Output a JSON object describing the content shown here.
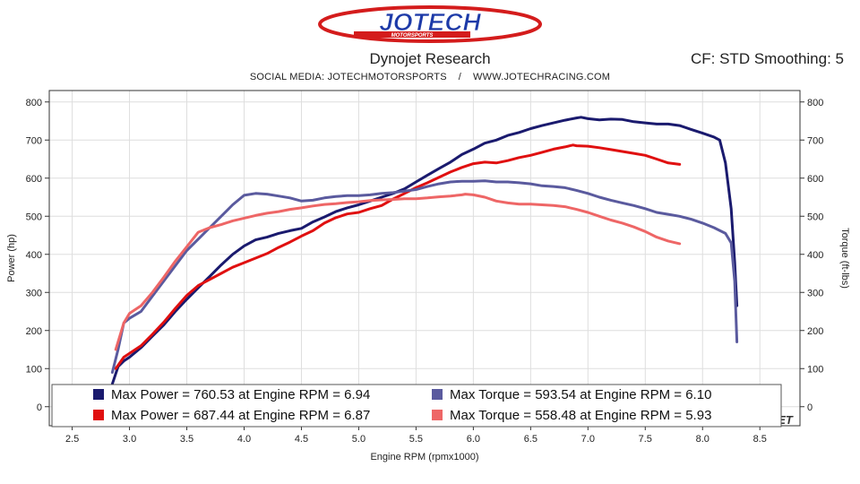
{
  "header": {
    "logo_text": "JOTECH",
    "logo_subtext": "MOTORSPORTS",
    "title": "Dynojet Research",
    "subtitle": "SOCIAL MEDIA: JOTECHMOTORSPORTS    /    WWW.JOTECHRACING.COM",
    "correction": "CF: STD Smoothing: 5"
  },
  "colors": {
    "power_run1": "#1a1a6e",
    "power_run2": "#e01010",
    "torque_run1": "#5a5a9e",
    "torque_run2": "#ee6666",
    "grid": "#dedede",
    "plot_border": "#333333"
  },
  "chart_data": {
    "type": "line",
    "xlabel": "Engine RPM (rpmx1000)",
    "ylabel": "Power (hp)",
    "y2label": "Torque (ft-lbs)",
    "xlim": [
      2.3,
      8.85
    ],
    "ylim": [
      -50,
      830
    ],
    "y2lim": [
      -50,
      830
    ],
    "xticks": [
      2.5,
      3.0,
      3.5,
      4.0,
      4.5,
      5.0,
      5.5,
      6.0,
      6.5,
      7.0,
      7.5,
      8.0,
      8.5
    ],
    "xtick_labels": [
      "2.5",
      "3.0",
      "3.5",
      "4.0",
      "4.5",
      "5.0",
      "5.5",
      "6.0",
      "6.5",
      "7.0",
      "7.5",
      "8.0",
      "8.5"
    ],
    "yticks": [
      0,
      100,
      200,
      300,
      400,
      500,
      600,
      700,
      800
    ],
    "ytick_labels": [
      "0",
      "100",
      "200",
      "300",
      "400",
      "500",
      "600",
      "700",
      "800"
    ],
    "grid": true,
    "legend_position": "bottom",
    "series": [
      {
        "axis": "left",
        "color": "#1a1a6e",
        "x": [
          2.85,
          2.9,
          2.95,
          3.0,
          3.1,
          3.2,
          3.3,
          3.4,
          3.5,
          3.6,
          3.7,
          3.8,
          3.9,
          4.0,
          4.1,
          4.2,
          4.3,
          4.4,
          4.5,
          4.6,
          4.7,
          4.8,
          4.9,
          5.0,
          5.1,
          5.2,
          5.3,
          5.4,
          5.5,
          5.6,
          5.7,
          5.8,
          5.9,
          6.0,
          6.1,
          6.2,
          6.3,
          6.4,
          6.5,
          6.6,
          6.7,
          6.8,
          6.9,
          6.94,
          7.0,
          7.1,
          7.2,
          7.3,
          7.4,
          7.5,
          7.6,
          7.7,
          7.8,
          7.9,
          8.0,
          8.1,
          8.15,
          8.2,
          8.25,
          8.28,
          8.3
        ],
        "values": [
          60,
          105,
          120,
          130,
          155,
          185,
          215,
          250,
          282,
          312,
          342,
          372,
          400,
          422,
          438,
          445,
          455,
          462,
          468,
          485,
          498,
          512,
          522,
          530,
          540,
          550,
          560,
          572,
          590,
          608,
          625,
          642,
          662,
          676,
          692,
          700,
          712,
          720,
          730,
          738,
          745,
          752,
          758,
          760,
          756,
          753,
          755,
          754,
          748,
          745,
          742,
          742,
          738,
          728,
          718,
          708,
          700,
          640,
          520,
          380,
          265
        ],
        "name": ""
      },
      {
        "axis": "left",
        "color": "#e01010",
        "x": [
          2.88,
          2.95,
          3.0,
          3.1,
          3.2,
          3.3,
          3.4,
          3.5,
          3.6,
          3.7,
          3.8,
          3.9,
          4.0,
          4.1,
          4.2,
          4.3,
          4.4,
          4.5,
          4.6,
          4.7,
          4.8,
          4.9,
          5.0,
          5.1,
          5.2,
          5.3,
          5.4,
          5.5,
          5.6,
          5.7,
          5.8,
          5.9,
          6.0,
          6.1,
          6.2,
          6.3,
          6.4,
          6.5,
          6.6,
          6.7,
          6.8,
          6.87,
          6.9,
          7.0,
          7.1,
          7.2,
          7.3,
          7.4,
          7.5,
          7.6,
          7.7,
          7.8
        ],
        "values": [
          100,
          130,
          140,
          160,
          190,
          222,
          258,
          292,
          318,
          334,
          350,
          366,
          378,
          390,
          402,
          418,
          432,
          448,
          462,
          482,
          496,
          506,
          510,
          520,
          528,
          545,
          560,
          575,
          588,
          602,
          616,
          628,
          638,
          642,
          640,
          646,
          654,
          660,
          668,
          676,
          682,
          687,
          685,
          684,
          680,
          675,
          670,
          665,
          660,
          650,
          640,
          636
        ],
        "name": ""
      },
      {
        "axis": "right",
        "color": "#5a5a9e",
        "x": [
          2.85,
          2.9,
          2.95,
          3.0,
          3.1,
          3.2,
          3.3,
          3.4,
          3.5,
          3.6,
          3.7,
          3.8,
          3.9,
          4.0,
          4.1,
          4.2,
          4.3,
          4.4,
          4.5,
          4.6,
          4.7,
          4.8,
          4.9,
          5.0,
          5.1,
          5.2,
          5.3,
          5.4,
          5.5,
          5.6,
          5.7,
          5.8,
          5.9,
          6.0,
          6.1,
          6.2,
          6.3,
          6.4,
          6.5,
          6.6,
          6.7,
          6.8,
          6.9,
          7.0,
          7.1,
          7.2,
          7.3,
          7.4,
          7.5,
          7.6,
          7.7,
          7.8,
          7.9,
          8.0,
          8.1,
          8.2,
          8.25,
          8.28,
          8.3
        ],
        "values": [
          90,
          150,
          220,
          232,
          250,
          290,
          330,
          370,
          410,
          440,
          470,
          500,
          530,
          555,
          560,
          558,
          553,
          548,
          540,
          542,
          548,
          552,
          554,
          554,
          556,
          560,
          562,
          566,
          570,
          578,
          585,
          590,
          592,
          592,
          593,
          590,
          590,
          588,
          585,
          580,
          578,
          575,
          568,
          560,
          550,
          542,
          535,
          528,
          520,
          510,
          505,
          500,
          492,
          482,
          470,
          455,
          430,
          330,
          170
        ],
        "name": ""
      },
      {
        "axis": "right",
        "color": "#ee6666",
        "x": [
          2.88,
          2.95,
          3.0,
          3.1,
          3.2,
          3.3,
          3.4,
          3.5,
          3.6,
          3.7,
          3.8,
          3.9,
          4.0,
          4.1,
          4.2,
          4.3,
          4.4,
          4.5,
          4.6,
          4.7,
          4.8,
          4.9,
          5.0,
          5.1,
          5.2,
          5.3,
          5.4,
          5.5,
          5.6,
          5.7,
          5.8,
          5.9,
          5.93,
          6.0,
          6.1,
          6.2,
          6.3,
          6.4,
          6.5,
          6.6,
          6.7,
          6.8,
          6.9,
          7.0,
          7.1,
          7.2,
          7.3,
          7.4,
          7.5,
          7.6,
          7.7,
          7.8
        ],
        "values": [
          150,
          220,
          245,
          265,
          300,
          340,
          382,
          420,
          458,
          470,
          478,
          488,
          495,
          502,
          508,
          512,
          518,
          522,
          527,
          531,
          533,
          536,
          538,
          541,
          543,
          544,
          546,
          546,
          548,
          551,
          553,
          556,
          558,
          556,
          550,
          540,
          535,
          532,
          532,
          530,
          528,
          525,
          518,
          510,
          500,
          490,
          482,
          472,
          460,
          445,
          435,
          428
        ],
        "name": ""
      }
    ],
    "legend": [
      "Max Power = 760.53 at Engine RPM = 6.94",
      "Max Torque = 593.54 at Engine RPM = 6.10",
      "Max Power = 687.44 at Engine RPM = 6.87",
      "Max Torque = 558.48 at Engine RPM = 5.93"
    ],
    "watermark_text": "JET"
  }
}
